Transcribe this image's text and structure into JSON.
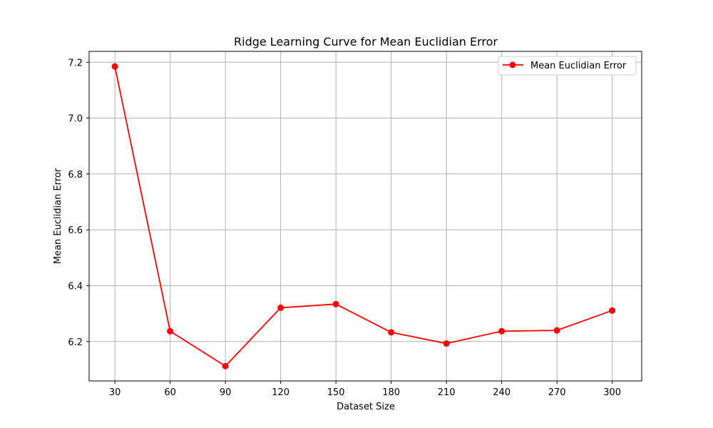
{
  "chart_data": {
    "type": "line",
    "title": "Ridge Learning Curve for Mean Euclidian Error",
    "xlabel": "Dataset Size",
    "ylabel": "Mean Euclidian Error",
    "x": [
      30,
      60,
      90,
      120,
      150,
      180,
      210,
      240,
      270,
      300
    ],
    "xticks": [
      "30",
      "60",
      "90",
      "120",
      "150",
      "180",
      "210",
      "240",
      "270",
      "300"
    ],
    "yticks": [
      "6.2",
      "6.4",
      "6.6",
      "6.8",
      "7.0",
      "7.2"
    ],
    "ytick_values": [
      6.2,
      6.4,
      6.6,
      6.8,
      7.0,
      7.2
    ],
    "xlim": [
      16,
      316
    ],
    "ylim": [
      6.059,
      7.239
    ],
    "grid": true,
    "legend_position": "top-right",
    "series": [
      {
        "name": "Mean Euclidian Error",
        "color": "#ff0000",
        "marker": "circle",
        "values": [
          7.185,
          6.237,
          6.112,
          6.321,
          6.334,
          6.233,
          6.193,
          6.237,
          6.24,
          6.311
        ]
      }
    ]
  }
}
